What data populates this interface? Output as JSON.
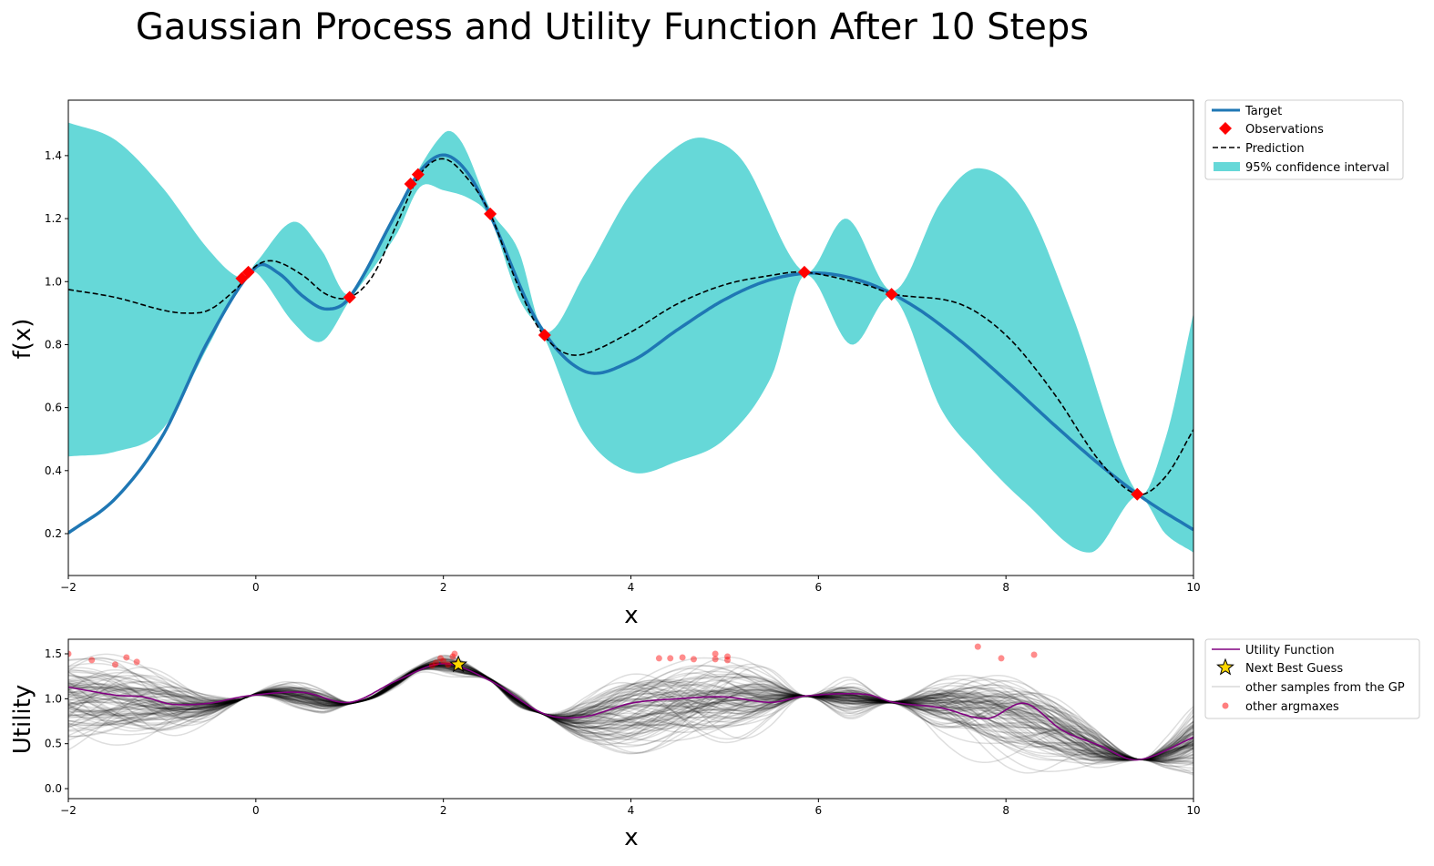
{
  "title": "Gaussian Process and Utility Function After 10 Steps",
  "colors": {
    "target": "#1f77b4",
    "observations": "#ff0000",
    "prediction": "#000000",
    "confidence": "#66d8d8",
    "utility": "#800080",
    "star": "#ffd700",
    "samples": "#000000",
    "argmax": "#ff0000"
  },
  "chart_data": [
    {
      "type": "line",
      "xlabel": "x",
      "ylabel": "f(x)",
      "xlim": [
        -2,
        10
      ],
      "ylim": [
        0.067,
        1.576
      ],
      "xticks": [
        -2,
        0,
        2,
        4,
        6,
        8,
        10
      ],
      "xtick_labels": [
        "−2",
        "0",
        "2",
        "4",
        "6",
        "8",
        "10"
      ],
      "yticks": [
        0.2,
        0.4,
        0.6,
        0.8,
        1.0,
        1.2,
        1.4
      ],
      "ytick_labels": [
        "0.2",
        "0.4",
        "0.6",
        "0.8",
        "1.0",
        "1.2",
        "1.4"
      ],
      "grid": false,
      "legend_placement": "outside-top-right",
      "legend": [
        "Target",
        "Observations",
        "Prediction",
        "95% confidence interval"
      ],
      "target": {
        "x": [
          -2,
          -1.5,
          -1,
          -0.5,
          0,
          0.25,
          0.5,
          0.75,
          1,
          1.5,
          1.75,
          2,
          2.25,
          2.5,
          3,
          3.5,
          4,
          4.5,
          5,
          5.5,
          6,
          6.5,
          7,
          7.5,
          8,
          8.5,
          9,
          9.5,
          10
        ],
        "y": [
          0.202,
          0.311,
          0.508,
          0.817,
          1.046,
          1.025,
          0.954,
          0.913,
          0.95,
          1.219,
          1.35,
          1.402,
          1.349,
          1.211,
          0.874,
          0.716,
          0.747,
          0.848,
          0.943,
          1.007,
          1.027,
          0.998,
          0.925,
          0.816,
          0.686,
          0.549,
          0.419,
          0.305,
          0.212
        ]
      },
      "observations": {
        "x": [
          -0.15,
          -0.08,
          1.0,
          1.65,
          1.73,
          2.5,
          3.08,
          5.85,
          6.78,
          9.4
        ],
        "y": [
          1.01,
          1.03,
          0.95,
          1.31,
          1.34,
          1.215,
          0.83,
          1.03,
          0.96,
          0.325
        ]
      },
      "prediction": {
        "x": [
          -2,
          -1.5,
          -1,
          -0.75,
          -0.5,
          -0.2,
          0,
          0.2,
          0.5,
          0.75,
          1,
          1.25,
          1.5,
          1.75,
          2,
          2.25,
          2.5,
          2.75,
          3,
          3.25,
          3.5,
          4,
          4.5,
          5,
          5.5,
          5.85,
          6.5,
          6.8,
          7.5,
          8,
          8.5,
          9,
          9.4,
          9.7,
          10
        ],
        "y": [
          0.975,
          0.95,
          0.91,
          0.9,
          0.91,
          0.98,
          1.05,
          1.065,
          1.02,
          0.96,
          0.95,
          1.02,
          1.18,
          1.34,
          1.39,
          1.33,
          1.215,
          1.02,
          0.86,
          0.78,
          0.77,
          0.84,
          0.93,
          0.99,
          1.02,
          1.03,
          0.99,
          0.96,
          0.93,
          0.83,
          0.65,
          0.43,
          0.325,
          0.38,
          0.53
        ]
      },
      "confidence_upper": {
        "x": [
          -2,
          -1.5,
          -1,
          -0.5,
          -0.15,
          0,
          0.4,
          0.7,
          1,
          1.5,
          2,
          2.2,
          2.5,
          2.8,
          3.08,
          3.5,
          4,
          4.5,
          4.8,
          5.2,
          5.85,
          6.3,
          6.8,
          7.3,
          7.7,
          8.2,
          8.7,
          9.4,
          9.7,
          10
        ],
        "y": [
          1.505,
          1.45,
          1.3,
          1.1,
          1.01,
          1.06,
          1.19,
          1.1,
          0.96,
          1.23,
          1.47,
          1.44,
          1.23,
          1.1,
          0.84,
          1.02,
          1.28,
          1.43,
          1.455,
          1.38,
          1.03,
          1.2,
          0.97,
          1.25,
          1.36,
          1.25,
          0.9,
          0.33,
          0.5,
          0.9
        ]
      },
      "confidence_lower": {
        "x": [
          -2,
          -1.5,
          -1,
          -0.5,
          -0.15,
          0,
          0.4,
          0.7,
          1,
          1.5,
          1.75,
          2,
          2.3,
          2.5,
          2.8,
          3.08,
          3.5,
          4,
          4.5,
          5,
          5.5,
          5.85,
          6.35,
          6.8,
          7.3,
          7.7,
          8.2,
          8.9,
          9.4,
          9.7,
          10
        ],
        "y": [
          0.445,
          0.46,
          0.53,
          0.8,
          1.0,
          1.03,
          0.87,
          0.81,
          0.94,
          1.15,
          1.3,
          1.29,
          1.26,
          1.2,
          0.95,
          0.82,
          0.52,
          0.395,
          0.43,
          0.5,
          0.7,
          1.02,
          0.8,
          0.95,
          0.6,
          0.45,
          0.3,
          0.14,
          0.32,
          0.2,
          0.14
        ]
      }
    },
    {
      "type": "line",
      "xlabel": "x",
      "ylabel": "Utility",
      "xlim": [
        -2,
        10
      ],
      "ylim": [
        -0.111,
        1.662
      ],
      "xticks": [
        -2,
        0,
        2,
        4,
        6,
        8,
        10
      ],
      "xtick_labels": [
        "−2",
        "0",
        "2",
        "4",
        "6",
        "8",
        "10"
      ],
      "yticks": [
        0.0,
        0.5,
        1.0,
        1.5
      ],
      "ytick_labels": [
        "0.0",
        "0.5",
        "1.0",
        "1.5"
      ],
      "grid": false,
      "legend_placement": "outside-top-right",
      "legend": [
        "Utility Function",
        "Next Best Guess",
        "other samples from the GP",
        "other argmaxes"
      ],
      "utility": {
        "x": [
          -2,
          -1.5,
          -1.2,
          -0.9,
          -0.5,
          -0.1,
          0.5,
          1,
          1.5,
          2,
          2.5,
          3.08,
          3.5,
          4,
          4.5,
          5,
          5.5,
          5.85,
          6.5,
          6.8,
          7.3,
          7.8,
          8.2,
          8.6,
          9,
          9.4,
          10
        ],
        "y": [
          1.13,
          1.04,
          1.02,
          0.94,
          0.95,
          1.03,
          1.07,
          0.96,
          1.2,
          1.39,
          1.2,
          0.83,
          0.8,
          0.95,
          1.0,
          1.02,
          0.96,
          1.03,
          1.05,
          0.96,
          0.9,
          0.78,
          0.95,
          0.65,
          0.48,
          0.32,
          0.57
        ]
      },
      "next_best_guess": {
        "x": 2.16,
        "y": 1.38
      },
      "argmaxes": {
        "x": [
          -2,
          -1.75,
          -1.5,
          -1.38,
          -1.27,
          1.88,
          1.92,
          1.97,
          2.0,
          2.05,
          2.1,
          2.12,
          2.15,
          4.3,
          4.42,
          4.55,
          4.67,
          4.9,
          4.9,
          5.03,
          5.03,
          7.7,
          7.95,
          8.3
        ],
        "y": [
          1.5,
          1.43,
          1.38,
          1.46,
          1.41,
          1.37,
          1.4,
          1.45,
          1.42,
          1.38,
          1.47,
          1.5,
          1.4,
          1.45,
          1.45,
          1.46,
          1.44,
          1.5,
          1.44,
          1.47,
          1.43,
          1.58,
          1.45,
          1.49
        ]
      },
      "samples": {
        "count": 100
      }
    }
  ]
}
